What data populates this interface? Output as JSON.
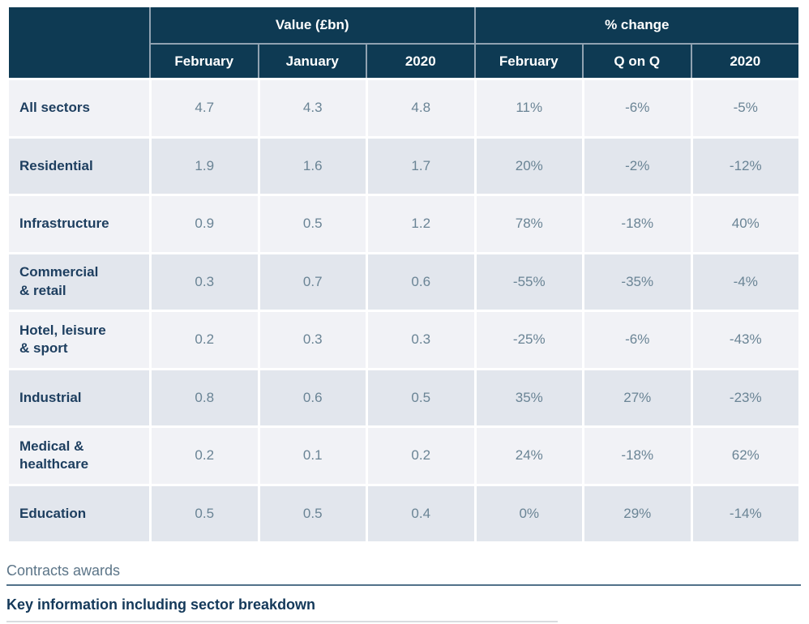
{
  "table": {
    "groups": [
      {
        "label": "Value (£bn)"
      },
      {
        "label": "% change"
      }
    ],
    "columns": [
      "February",
      "January",
      "2020",
      "February",
      "Q on Q",
      "2020"
    ],
    "rows": [
      {
        "sector": "All sectors",
        "values": [
          "4.7",
          "4.3",
          "4.8",
          "11%",
          "-6%",
          "-5%"
        ]
      },
      {
        "sector": "Residential",
        "values": [
          "1.9",
          "1.6",
          "1.7",
          "20%",
          "-2%",
          "-12%"
        ]
      },
      {
        "sector": "Infrastructure",
        "values": [
          "0.9",
          "0.5",
          "1.2",
          "78%",
          "-18%",
          "40%"
        ]
      },
      {
        "sector": "Commercial\n& retail",
        "values": [
          "0.3",
          "0.7",
          "0.6",
          "-55%",
          "-35%",
          "-4%"
        ]
      },
      {
        "sector": "Hotel, leisure\n& sport",
        "values": [
          "0.2",
          "0.3",
          "0.3",
          "-25%",
          "-6%",
          "-43%"
        ]
      },
      {
        "sector": "Industrial",
        "values": [
          "0.8",
          "0.6",
          "0.5",
          "35%",
          "27%",
          "-23%"
        ]
      },
      {
        "sector": "Medical &\nhealthcare",
        "values": [
          "0.2",
          "0.1",
          "0.2",
          "24%",
          "-18%",
          "62%"
        ]
      },
      {
        "sector": "Education",
        "values": [
          "0.5",
          "0.5",
          "0.4",
          "0%",
          "29%",
          "-14%"
        ]
      }
    ]
  },
  "footer": {
    "section_label": "Contracts awards",
    "heading": "Key information including sector breakdown"
  },
  "colors": {
    "header_bg": "#0E3A53",
    "header_divider": "#90A2B1",
    "row_light": "#F1F2F6",
    "row_dark": "#E2E6ED",
    "sector_text": "#1D3E5F",
    "value_text": "#6A8495",
    "section_label_text": "#5C7588",
    "heading_text": "#14395A",
    "rule": "#517189",
    "bottom_rule": "#D9DCDF"
  },
  "chart_data": {
    "type": "table",
    "column_groups": [
      {
        "label": "Value (£bn)",
        "columns": [
          "February",
          "January",
          "2020"
        ]
      },
      {
        "label": "% change",
        "columns": [
          "February",
          "Q on Q",
          "2020"
        ]
      }
    ],
    "rows": [
      {
        "sector": "All sectors",
        "value_bn": {
          "February": 4.7,
          "January": 4.3,
          "2020": 4.8
        },
        "pct_change": {
          "February": "11%",
          "Q on Q": "-6%",
          "2020": "-5%"
        }
      },
      {
        "sector": "Residential",
        "value_bn": {
          "February": 1.9,
          "January": 1.6,
          "2020": 1.7
        },
        "pct_change": {
          "February": "20%",
          "Q on Q": "-2%",
          "2020": "-12%"
        }
      },
      {
        "sector": "Infrastructure",
        "value_bn": {
          "February": 0.9,
          "January": 0.5,
          "2020": 1.2
        },
        "pct_change": {
          "February": "78%",
          "Q on Q": "-18%",
          "2020": "40%"
        }
      },
      {
        "sector": "Commercial & retail",
        "value_bn": {
          "February": 0.3,
          "January": 0.7,
          "2020": 0.6
        },
        "pct_change": {
          "February": "-55%",
          "Q on Q": "-35%",
          "2020": "-4%"
        }
      },
      {
        "sector": "Hotel, leisure & sport",
        "value_bn": {
          "February": 0.2,
          "January": 0.3,
          "2020": 0.3
        },
        "pct_change": {
          "February": "-25%",
          "Q on Q": "-6%",
          "2020": "-43%"
        }
      },
      {
        "sector": "Industrial",
        "value_bn": {
          "February": 0.8,
          "January": 0.6,
          "2020": 0.5
        },
        "pct_change": {
          "February": "35%",
          "Q on Q": "27%",
          "2020": "-23%"
        }
      },
      {
        "sector": "Medical & healthcare",
        "value_bn": {
          "February": 0.2,
          "January": 0.1,
          "2020": 0.2
        },
        "pct_change": {
          "February": "24%",
          "Q on Q": "-18%",
          "2020": "62%"
        }
      },
      {
        "sector": "Education",
        "value_bn": {
          "February": 0.5,
          "January": 0.5,
          "2020": 0.4
        },
        "pct_change": {
          "February": "0%",
          "Q on Q": "29%",
          "2020": "-14%"
        }
      }
    ],
    "notes": "Contracts awards — key information including sector breakdown"
  }
}
